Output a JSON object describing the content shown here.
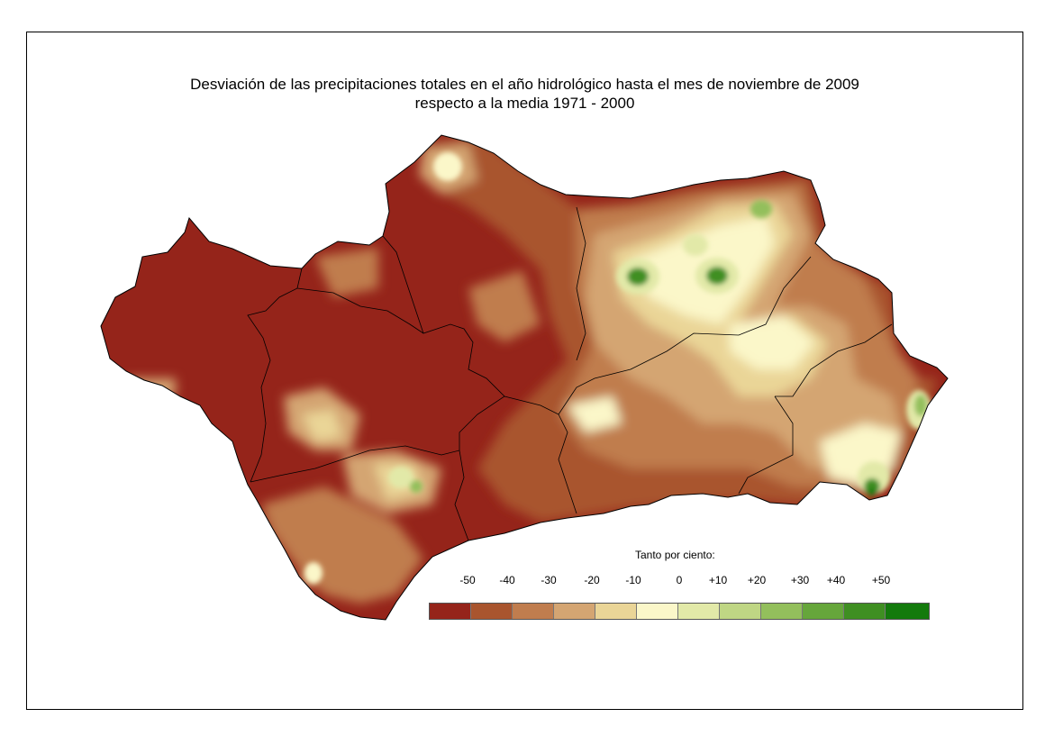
{
  "title_line1": "Desviación de las precipitaciones totales en el año hidrológico hasta el mes de noviembre de 2009",
  "title_line2": "respecto a la media 1971 - 2000",
  "legend": {
    "title": "Tanto por ciento:",
    "ticks": [
      "-50",
      "-40",
      "-30",
      "-20",
      "-10",
      "0",
      "+10",
      "+20",
      "+30",
      "+40",
      "+50"
    ],
    "colors": [
      "#95241a",
      "#a9552e",
      "#c07d4e",
      "#d4a572",
      "#ead597",
      "#fbf7c9",
      "#e2e9a8",
      "#bfd684",
      "#93bf5c",
      "#66a63b",
      "#3f8f22",
      "#137a0c"
    ]
  },
  "map_colors": {
    "very_dry": "#95241a",
    "dry": "#a9552e",
    "moderately_dry": "#c07d4e",
    "slightly_dry": "#d4a572",
    "near_dry": "#ead597",
    "normal": "#fbf7c9",
    "slightly_wet": "#e2e9a8",
    "wet": "#bfd684",
    "wetter": "#93bf5c",
    "very_wet": "#3f8f22",
    "extreme_wet": "#137a0c",
    "border": "#000000"
  }
}
